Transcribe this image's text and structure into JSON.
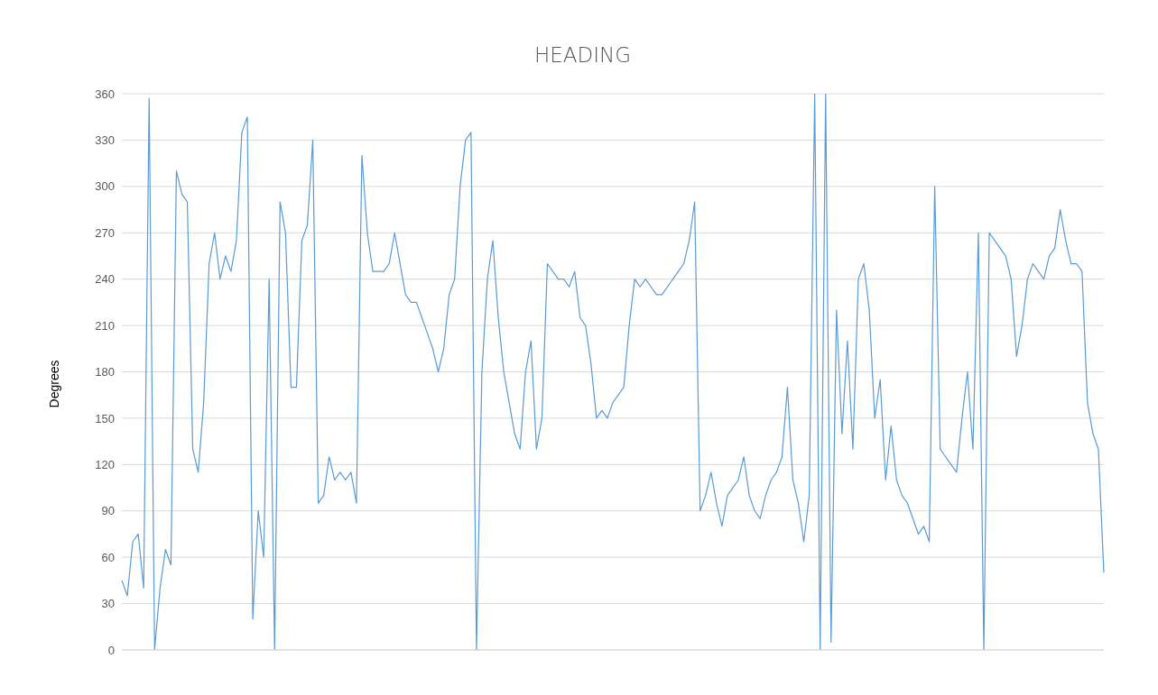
{
  "chart_data": {
    "type": "line",
    "title": "HEADING",
    "ylabel": "Degrees",
    "categories": [
      null,
      null,
      null,
      null,
      null,
      null,
      null,
      null,
      null,
      null,
      null,
      null,
      null,
      null,
      null,
      null,
      null,
      null,
      null,
      null,
      null,
      null,
      null,
      null,
      null,
      null,
      null,
      null,
      null,
      null,
      null,
      null,
      null,
      null,
      null,
      null,
      null,
      null,
      null,
      null,
      null,
      null,
      null,
      null,
      null,
      null,
      null,
      null,
      null,
      null,
      null,
      null,
      null,
      null,
      null,
      null,
      null,
      null,
      null,
      null,
      null,
      null,
      null,
      null,
      null,
      null,
      null,
      null,
      null,
      null,
      null,
      null,
      null,
      null,
      null,
      null,
      null,
      null,
      null,
      null,
      null,
      null,
      null,
      null,
      null,
      null,
      null,
      null,
      null,
      null,
      null,
      null,
      null,
      null,
      null,
      null,
      null,
      null,
      null,
      null,
      null,
      null,
      null,
      null,
      null,
      null,
      null,
      null,
      null,
      null,
      null,
      null,
      null,
      null,
      null,
      null,
      null,
      null,
      null,
      null,
      null,
      null,
      null,
      null,
      null,
      null,
      null,
      null,
      null,
      null,
      null,
      null,
      null,
      null,
      null,
      null,
      null,
      null,
      null,
      null,
      null,
      null,
      null,
      null,
      null,
      null,
      null,
      null,
      null,
      null,
      null,
      null,
      null,
      null,
      null,
      null,
      null,
      null,
      null,
      null,
      null,
      null,
      null,
      null,
      null,
      null,
      null,
      null,
      null,
      null,
      null,
      null,
      null,
      null,
      null,
      null,
      null,
      null,
      null,
      null,
      null
    ],
    "series": [
      {
        "color": "#5b9bd5",
        "values": [
          45,
          35,
          70,
          75,
          40,
          357,
          0,
          40,
          65,
          55,
          310,
          295,
          290,
          130,
          115,
          160,
          250,
          270,
          240,
          255,
          245,
          265,
          335,
          345,
          20,
          90,
          60,
          240,
          0,
          290,
          270,
          170,
          170,
          265,
          275,
          330,
          95,
          100,
          125,
          110,
          115,
          110,
          115,
          95,
          320,
          270,
          245,
          245,
          245,
          250,
          270,
          250,
          230,
          225,
          225,
          215,
          205,
          195,
          180,
          195,
          230,
          240,
          300,
          330,
          335,
          0,
          180,
          240,
          265,
          215,
          180,
          160,
          140,
          130,
          180,
          200,
          130,
          150,
          250,
          245,
          240,
          240,
          235,
          245,
          215,
          210,
          185,
          150,
          155,
          150,
          160,
          165,
          170,
          210,
          240,
          235,
          240,
          235,
          230,
          230,
          235,
          240,
          245,
          250,
          265,
          290,
          90,
          100,
          115,
          95,
          80,
          100,
          105,
          110,
          125,
          100,
          90,
          85,
          100,
          110,
          115,
          125,
          170,
          110,
          95,
          70,
          100,
          360,
          0,
          360,
          5,
          220,
          140,
          200,
          130,
          240,
          250,
          220,
          150,
          175,
          110,
          145,
          110,
          100,
          95,
          85,
          75,
          80,
          70,
          300,
          130,
          125,
          120,
          115,
          150,
          180,
          130,
          270,
          0,
          270,
          265,
          260,
          255,
          240,
          190,
          210,
          240,
          250,
          245,
          240,
          255,
          260,
          285,
          265,
          250,
          250,
          245,
          160,
          140,
          130,
          50
        ]
      }
    ],
    "ylim": [
      0,
      360
    ],
    "yticks": [
      0,
      30,
      60,
      90,
      120,
      150,
      180,
      210,
      240,
      270,
      300,
      330,
      360
    ],
    "grid": "y",
    "marker": "none",
    "line_style": "solid"
  }
}
